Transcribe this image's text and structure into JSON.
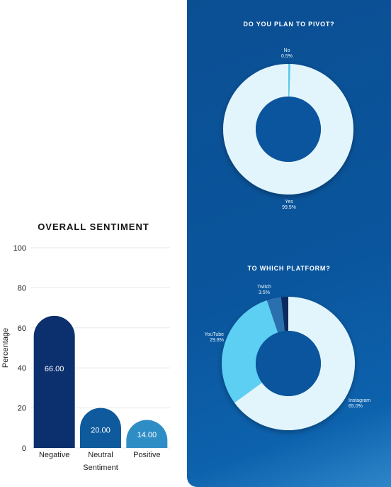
{
  "chart_data": [
    {
      "type": "bar",
      "title": "OVERALL SENTIMENT",
      "xlabel": "Sentiment",
      "ylabel": "Percentage",
      "categories": [
        "Negative",
        "Neutral",
        "Positive"
      ],
      "values": [
        66.0,
        20.0,
        14.0
      ],
      "value_labels": [
        "66.00",
        "20.00",
        "14.00"
      ],
      "colors": [
        "#0c2f6e",
        "#0e5a9c",
        "#2f8dc6"
      ],
      "ylim": [
        0,
        100
      ],
      "yticks": [
        0,
        20,
        40,
        60,
        80,
        100
      ],
      "grid": true
    },
    {
      "type": "pie",
      "donut": true,
      "title": "DO YOU PLAN TO PIVOT?",
      "slices": [
        {
          "label": "No",
          "value": 0.5,
          "pct_label": "0.5%",
          "color": "#58c8ec"
        },
        {
          "label": "Yes",
          "value": 99.5,
          "pct_label": "99.5%",
          "color": "#e3f5fc"
        }
      ]
    },
    {
      "type": "pie",
      "donut": true,
      "title": "TO WHICH PLATFORM?",
      "slices": [
        {
          "label": "Instagram",
          "value": 65.0,
          "pct_label": "65.0%",
          "color": "#e3f5fc"
        },
        {
          "label": "YouTube",
          "value": 29.8,
          "pct_label": "29.8%",
          "color": "#5ccff3"
        },
        {
          "label": "Twitch",
          "value": 3.5,
          "pct_label": "3.5%",
          "color": "#2a6fae"
        },
        {
          "label": "",
          "value": 1.7,
          "pct_label": "",
          "color": "#0d2b5e"
        }
      ]
    }
  ]
}
